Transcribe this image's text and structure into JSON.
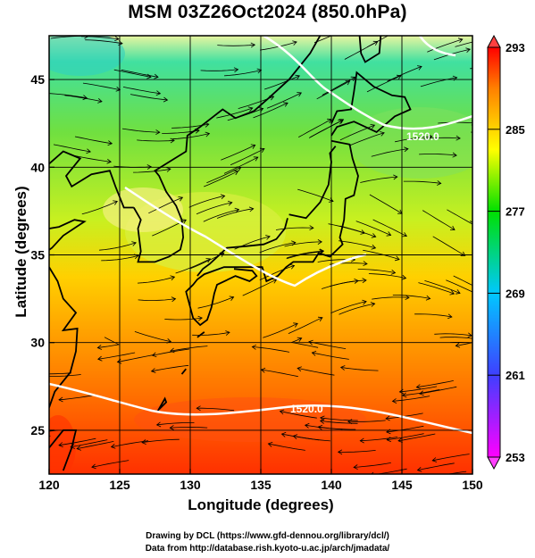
{
  "title": "MSM 03Z26Oct2024 (850.0hPa)",
  "axes": {
    "xlabel": "Longitude (degrees)",
    "ylabel": "Latitude  (degrees)",
    "xlim": [
      120,
      150
    ],
    "ylim": [
      22.5,
      47.5
    ],
    "xticks": [
      "120",
      "125",
      "130",
      "135",
      "140",
      "145",
      "150"
    ],
    "yticks": [
      "25",
      "30",
      "35",
      "40",
      "45"
    ]
  },
  "colorbar": {
    "ticks": [
      "293",
      "285",
      "277",
      "269",
      "261",
      "253"
    ],
    "range": [
      253,
      293
    ],
    "colors": [
      "#ff00ff",
      "#3f3fff",
      "#00c8ff",
      "#00e000",
      "#ffff00",
      "#ff8000",
      "#ff0000"
    ]
  },
  "contour_labels": [
    "1520.0",
    "1520.0"
  ],
  "footer": {
    "line1": "Drawing by DCL (https://www.gfd-dennou.org/library/dcl/)",
    "line2": "Data from http://database.rish.kyoto-u.ac.jp/arch/jmadata/"
  }
}
